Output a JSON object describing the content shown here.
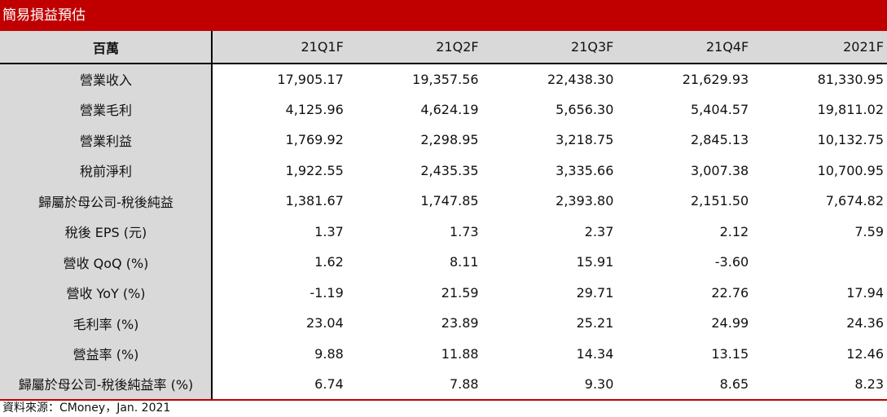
{
  "title": "簡易損益預估",
  "header": {
    "unit_label": "百萬",
    "columns": [
      "21Q1F",
      "21Q2F",
      "21Q3F",
      "21Q4F",
      "2021F"
    ]
  },
  "rows": [
    {
      "label": "營業收入",
      "values": [
        "17,905.17",
        "19,357.56",
        "22,438.30",
        "21,629.93",
        "81,330.95"
      ]
    },
    {
      "label": "營業毛利",
      "values": [
        "4,125.96",
        "4,624.19",
        "5,656.30",
        "5,404.57",
        "19,811.02"
      ]
    },
    {
      "label": "營業利益",
      "values": [
        "1,769.92",
        "2,298.95",
        "3,218.75",
        "2,845.13",
        "10,132.75"
      ]
    },
    {
      "label": "稅前淨利",
      "values": [
        "1,922.55",
        "2,435.35",
        "3,335.66",
        "3,007.38",
        "10,700.95"
      ]
    },
    {
      "label": "歸屬於母公司-稅後純益",
      "values": [
        "1,381.67",
        "1,747.85",
        "2,393.80",
        "2,151.50",
        "7,674.82"
      ]
    },
    {
      "label": "稅後 EPS (元)",
      "values": [
        "1.37",
        "1.73",
        "2.37",
        "2.12",
        "7.59"
      ]
    },
    {
      "label": "營收 QoQ (%)",
      "values": [
        "1.62",
        "8.11",
        "15.91",
        "-3.60",
        ""
      ]
    },
    {
      "label": "營收 YoY (%)",
      "values": [
        "-1.19",
        "21.59",
        "29.71",
        "22.76",
        "17.94"
      ]
    },
    {
      "label": "毛利率 (%)",
      "values": [
        "23.04",
        "23.89",
        "25.21",
        "24.99",
        "24.36"
      ]
    },
    {
      "label": "營益率 (%)",
      "values": [
        "9.88",
        "11.88",
        "14.34",
        "13.15",
        "12.46"
      ]
    },
    {
      "label": "歸屬於母公司-稅後純益率 (%)",
      "values": [
        "6.74",
        "7.88",
        "9.30",
        "8.65",
        "8.23"
      ]
    }
  ],
  "source": "資料來源：CMoney，Jan. 2021",
  "colors": {
    "title_bg": "#c00000",
    "label_bg": "#d9d9d9"
  }
}
